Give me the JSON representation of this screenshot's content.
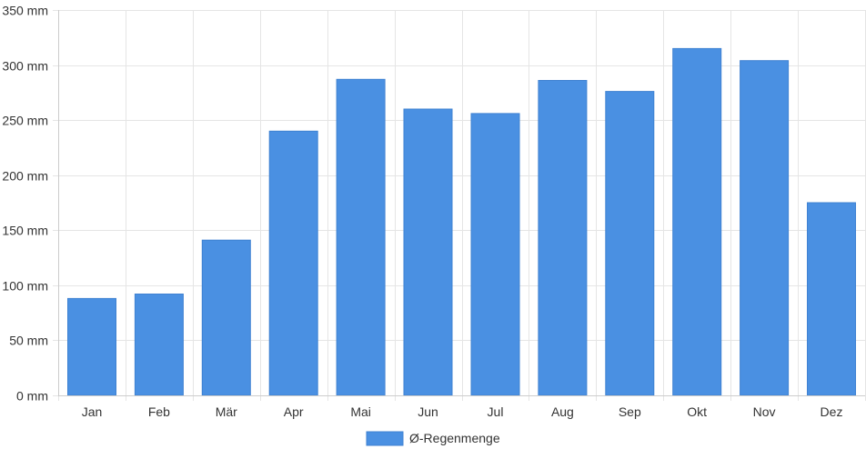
{
  "chart_data": {
    "type": "bar",
    "categories": [
      "Jan",
      "Feb",
      "Mär",
      "Apr",
      "Mai",
      "Jun",
      "Jul",
      "Aug",
      "Sep",
      "Okt",
      "Nov",
      "Dez"
    ],
    "series": [
      {
        "name": "Ø-Regenmenge",
        "values": [
          88,
          92,
          141,
          240,
          287,
          260,
          256,
          286,
          276,
          315,
          304,
          175
        ],
        "color": "#4a90e2"
      }
    ],
    "title": "",
    "xlabel": "",
    "ylabel": "",
    "ylim": [
      0,
      350
    ],
    "yticks": [
      0,
      50,
      100,
      150,
      200,
      250,
      300,
      350
    ],
    "y_unit": "mm",
    "grid": true,
    "legend_position": "bottom"
  }
}
